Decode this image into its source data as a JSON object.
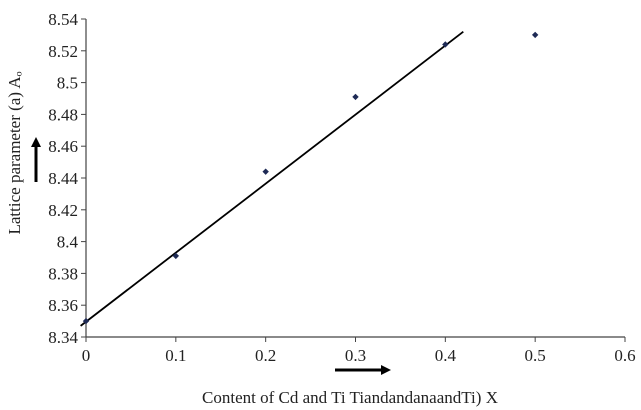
{
  "chart_data": {
    "type": "scatter",
    "title": "",
    "xlabel": "Content of Cd and Ti TiandandanaandTi) X",
    "ylabel": "Lattice parameter (a) Aₒ",
    "xlim": [
      0,
      0.6
    ],
    "ylim": [
      8.34,
      8.54
    ],
    "x_ticks": [
      0,
      0.1,
      0.2,
      0.3,
      0.4,
      0.5,
      0.6
    ],
    "x_tick_labels": [
      "0",
      "0.1",
      "0.2",
      "0.3",
      "0.4",
      "0.5",
      "0.6"
    ],
    "y_ticks": [
      8.34,
      8.36,
      8.38,
      8.4,
      8.42,
      8.44,
      8.46,
      8.48,
      8.5,
      8.52,
      8.54
    ],
    "y_tick_labels": [
      "8.34",
      "8.36",
      "8.38",
      "8.4",
      "8.42",
      "8.44",
      "8.46",
      "8.48",
      "8.5",
      "8.52",
      "8.54"
    ],
    "grid": false,
    "legend": "none",
    "series": [
      {
        "x": [
          0,
          0.1,
          0.2,
          0.3,
          0.4,
          0.5
        ],
        "y": [
          8.35,
          8.391,
          8.444,
          8.491,
          8.524,
          8.53
        ]
      }
    ],
    "trendline": {
      "x_start": -0.006,
      "y_start": 8.347,
      "x_end": 0.42,
      "y_end": 8.532
    },
    "annotations": [
      "arrow-up-beside-y-axis",
      "arrow-right-below-x-axis"
    ],
    "colors": {
      "marker": "#1e2a55",
      "line": "#000000"
    }
  }
}
